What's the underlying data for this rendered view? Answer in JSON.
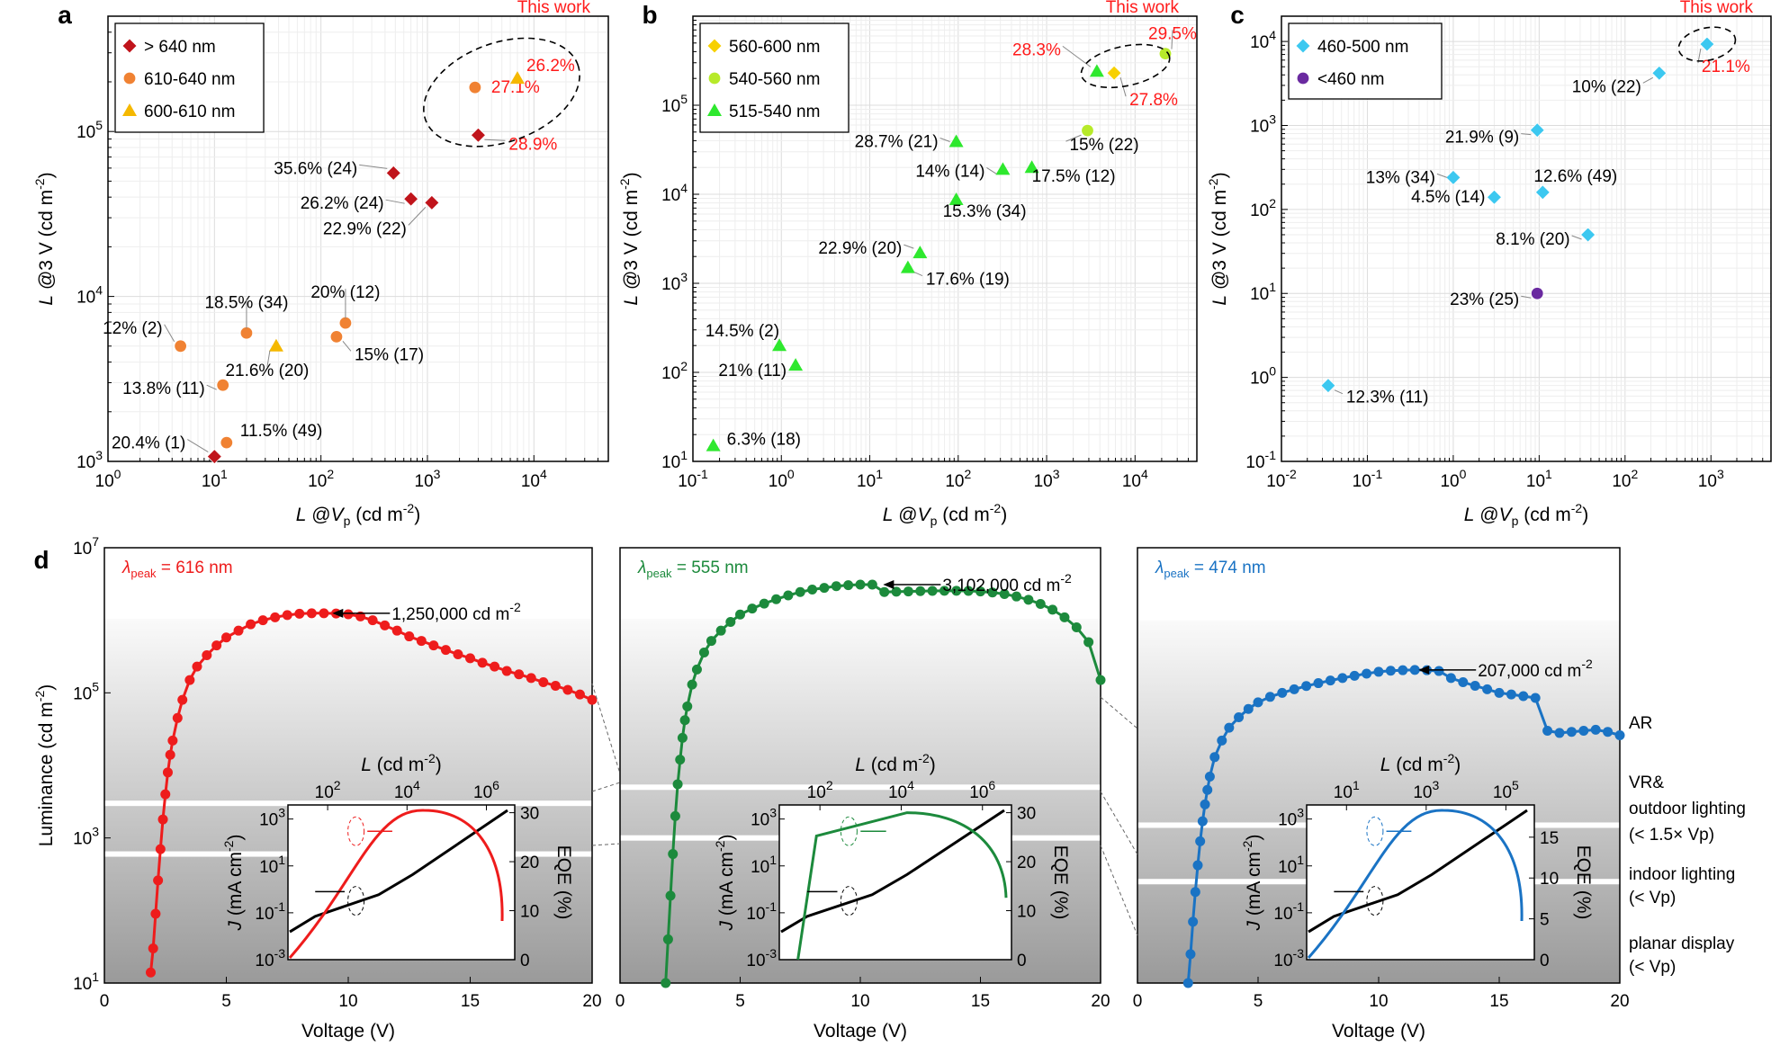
{
  "chart_data": [
    {
      "panel": "a",
      "type": "scatter",
      "xlabel": "L @Vp (cd m-2)",
      "ylabel": "L @3 V (cd m-2)",
      "xscale": "log",
      "yscale": "log",
      "xlim": [
        1,
        50000
      ],
      "ylim": [
        1000,
        500000
      ],
      "x_ticks": [
        "10^0",
        "10^1",
        "10^2",
        "10^3",
        "10^4"
      ],
      "y_ticks": [
        "10^3",
        "10^4",
        "10^5"
      ],
      "legend": [
        {
          "name": "> 640 nm",
          "color": "#c0141b",
          "marker": "diamond"
        },
        {
          "name": "610-640 nm",
          "color": "#f08233",
          "marker": "circle"
        },
        {
          "name": "600-610 nm",
          "color": "#f5b800",
          "marker": "triangle"
        }
      ],
      "this_work_label": "This work",
      "points": [
        {
          "series": 0,
          "x": 3000,
          "y": 95000,
          "label": "28.9%",
          "highlight": true
        },
        {
          "series": 1,
          "x": 2800,
          "y": 185000,
          "label": "27.1%",
          "highlight": true
        },
        {
          "series": 2,
          "x": 7000,
          "y": 210000,
          "label": "26.2%",
          "highlight": true
        },
        {
          "series": 0,
          "x": 480,
          "y": 56000,
          "label": "35.6% (24)"
        },
        {
          "series": 0,
          "x": 700,
          "y": 39000,
          "label": "26.2% (24)"
        },
        {
          "series": 0,
          "x": 1100,
          "y": 37000,
          "label": "22.9% (22)"
        },
        {
          "series": 1,
          "x": 4.8,
          "y": 5000,
          "label": "12% (2)"
        },
        {
          "series": 1,
          "x": 20,
          "y": 6000,
          "label": "18.5% (34)"
        },
        {
          "series": 1,
          "x": 170,
          "y": 6900,
          "label": "20% (12)"
        },
        {
          "series": 1,
          "x": 140,
          "y": 5700,
          "label": "15% (17)"
        },
        {
          "series": 2,
          "x": 38,
          "y": 5000,
          "label": "21.6% (20)"
        },
        {
          "series": 1,
          "x": 12,
          "y": 2900,
          "label": "13.8% (11)"
        },
        {
          "series": 1,
          "x": 13,
          "y": 1300,
          "label": "11.5% (49)"
        },
        {
          "series": 0,
          "x": 10,
          "y": 1070,
          "label": "20.4% (1)"
        }
      ]
    },
    {
      "panel": "b",
      "type": "scatter",
      "xlabel": "L @Vp (cd m-2)",
      "ylabel": "L @3 V (cd m-2)",
      "xscale": "log",
      "yscale": "log",
      "xlim": [
        0.1,
        50000
      ],
      "ylim": [
        10,
        1000000
      ],
      "x_ticks": [
        "10^-1",
        "10^0",
        "10^1",
        "10^2",
        "10^3",
        "10^4"
      ],
      "y_ticks": [
        "10^1",
        "10^2",
        "10^3",
        "10^4",
        "10^5"
      ],
      "legend": [
        {
          "name": "560-600 nm",
          "color": "#f7d000",
          "marker": "diamond"
        },
        {
          "name": "540-560 nm",
          "color": "#b7ea2a",
          "marker": "circle"
        },
        {
          "name": "515-540 nm",
          "color": "#2ee82e",
          "marker": "triangle"
        }
      ],
      "this_work_label": "This work",
      "points": [
        {
          "series": 2,
          "x": 3700,
          "y": 240000,
          "label": "28.3%",
          "highlight": true
        },
        {
          "series": 1,
          "x": 22000,
          "y": 380000,
          "label": "29.5%",
          "highlight": true
        },
        {
          "series": 0,
          "x": 5800,
          "y": 230000,
          "label": "27.8%",
          "highlight": true
        },
        {
          "series": 2,
          "x": 95,
          "y": 39000,
          "label": "28.7% (21)"
        },
        {
          "series": 2,
          "x": 320,
          "y": 19000,
          "label": "14% (14)"
        },
        {
          "series": 2,
          "x": 680,
          "y": 20000,
          "label": "17.5% (12)"
        },
        {
          "series": 1,
          "x": 2900,
          "y": 52000,
          "label": "15% (22)"
        },
        {
          "series": 2,
          "x": 95,
          "y": 8700,
          "label": "15.3% (34)"
        },
        {
          "series": 2,
          "x": 37,
          "y": 2200,
          "label": "22.9% (20)"
        },
        {
          "series": 2,
          "x": 27,
          "y": 1500,
          "label": "17.6% (19)"
        },
        {
          "series": 2,
          "x": 0.95,
          "y": 200,
          "label": "14.5% (2)"
        },
        {
          "series": 2,
          "x": 1.45,
          "y": 120,
          "label": "21% (11)"
        },
        {
          "series": 2,
          "x": 0.17,
          "y": 15,
          "label": "6.3% (18)"
        }
      ]
    },
    {
      "panel": "c",
      "type": "scatter",
      "xlabel": "L @Vp (cd m-2)",
      "ylabel": "L @3 V (cd m-2)",
      "xscale": "log",
      "yscale": "log",
      "xlim": [
        0.01,
        5000
      ],
      "ylim": [
        0.1,
        20000
      ],
      "x_ticks": [
        "10^-2",
        "10^-1",
        "10^0",
        "10^1",
        "10^2",
        "10^3"
      ],
      "y_ticks": [
        "10^-1",
        "10^0",
        "10^1",
        "10^2",
        "10^3",
        "10^4"
      ],
      "legend": [
        {
          "name": "460-500 nm",
          "color": "#3cc8f0",
          "marker": "diamond"
        },
        {
          "name": "<460 nm",
          "color": "#6a2aa0",
          "marker": "circle"
        }
      ],
      "this_work_label": "This work",
      "points": [
        {
          "series": 0,
          "x": 900,
          "y": 9300,
          "label": "21.1%",
          "highlight": true
        },
        {
          "series": 0,
          "x": 250,
          "y": 4200,
          "label": "10% (22)"
        },
        {
          "series": 0,
          "x": 9.5,
          "y": 880,
          "label": "21.9% (9)"
        },
        {
          "series": 0,
          "x": 1.0,
          "y": 240,
          "label": "13% (34)"
        },
        {
          "series": 0,
          "x": 11,
          "y": 160,
          "label": "12.6% (49)"
        },
        {
          "series": 0,
          "x": 3.0,
          "y": 140,
          "label": "4.5% (14)"
        },
        {
          "series": 0,
          "x": 37,
          "y": 50,
          "label": "8.1% (20)"
        },
        {
          "series": 1,
          "x": 9.5,
          "y": 10,
          "label": "23% (25)"
        },
        {
          "series": 0,
          "x": 0.035,
          "y": 0.8,
          "label": "12.3% (11)"
        }
      ]
    },
    {
      "panel": "d",
      "type": "line",
      "xlabel": "Voltage (V)",
      "ylabel": "Luminance (cd m-2)",
      "yscale": "log",
      "xlim": [
        0,
        20
      ],
      "ylim": [
        10,
        10000000
      ],
      "x_ticks": [
        "0",
        "5",
        "10",
        "15",
        "20"
      ],
      "y_ticks": [
        "10^1",
        "10^3",
        "10^5",
        "10^7"
      ],
      "zones": [
        {
          "label": [
            "AR"
          ]
        },
        {
          "label": [
            "VR&",
            "outdoor lighting",
            "(< 1.5× Vp)"
          ]
        },
        {
          "label": [
            "indoor lighting",
            "(< Vp)"
          ]
        },
        {
          "label": [
            "planar display",
            "(< Vp)"
          ]
        }
      ],
      "series": [
        {
          "name": "λpeak = 616 nm",
          "color": "#ee1c1c",
          "peak_label": "1,250,000 cd m-2",
          "peak": [
            9.2,
            1250000
          ],
          "x": [
            1.9,
            2.0,
            2.1,
            2.2,
            2.3,
            2.4,
            2.5,
            2.6,
            2.7,
            2.8,
            3.0,
            3.2,
            3.5,
            3.8,
            4.2,
            4.6,
            5.0,
            5.5,
            6.0,
            6.5,
            7.0,
            7.5,
            8.0,
            8.5,
            9.0,
            9.5,
            10.0,
            10.5,
            11.0,
            11.5,
            12.0,
            12.5,
            13.0,
            13.5,
            14.0,
            14.5,
            15.0,
            15.5,
            16.0,
            16.5,
            17.0,
            17.5,
            18.0,
            18.5,
            19.0,
            19.5,
            20.0
          ],
          "y": [
            14,
            30,
            90,
            260,
            700,
            1800,
            4000,
            8000,
            14000,
            22000,
            45000,
            80000,
            150000,
            230000,
            330000,
            450000,
            580000,
            720000,
            880000,
            1000000,
            1100000,
            1180000,
            1230000,
            1250000,
            1250000,
            1240000,
            1210000,
            1130000,
            1000000,
            850000,
            720000,
            600000,
            520000,
            450000,
            390000,
            340000,
            300000,
            260000,
            230000,
            200000,
            180000,
            160000,
            140000,
            125000,
            110000,
            95000,
            80000
          ]
        },
        {
          "name": "λpeak = 555 nm",
          "color": "#1c8a3c",
          "peak_label": "3,102,000 cd m-2",
          "peak": [
            10.8,
            3102000
          ],
          "x": [
            1.9,
            2.0,
            2.1,
            2.2,
            2.3,
            2.4,
            2.5,
            2.6,
            2.7,
            2.8,
            3.0,
            3.2,
            3.5,
            3.8,
            4.2,
            4.6,
            5.0,
            5.5,
            6.0,
            6.5,
            7.0,
            7.5,
            8.0,
            8.5,
            9.0,
            9.5,
            10.0,
            10.5,
            11.0,
            11.5,
            12.0,
            12.5,
            13.0,
            13.5,
            14.0,
            14.5,
            15.0,
            15.5,
            16.0,
            16.5,
            17.0,
            17.5,
            18.0,
            18.5,
            19.0,
            19.5,
            20.0
          ],
          "y": [
            10,
            40,
            160,
            600,
            2000,
            5500,
            12000,
            24000,
            42000,
            65000,
            130000,
            210000,
            360000,
            520000,
            720000,
            950000,
            1200000,
            1450000,
            1700000,
            1950000,
            2200000,
            2450000,
            2650000,
            2800000,
            2950000,
            3050000,
            3100000,
            3100000,
            2450000,
            2480000,
            2500000,
            2520000,
            2540000,
            2550000,
            2550000,
            2540000,
            2500000,
            2420000,
            2300000,
            2130000,
            1920000,
            1680000,
            1400000,
            1100000,
            800000,
            500000,
            150000
          ]
        },
        {
          "name": "λpeak = 474 nm",
          "color": "#1a73c4",
          "peak_label": "207,000 cd m-2",
          "peak": [
            11.5,
            207000
          ],
          "x": [
            2.1,
            2.2,
            2.3,
            2.4,
            2.5,
            2.6,
            2.7,
            2.8,
            2.9,
            3.0,
            3.2,
            3.5,
            3.8,
            4.2,
            4.6,
            5.0,
            5.5,
            6.0,
            6.5,
            7.0,
            7.5,
            8.0,
            8.5,
            9.0,
            9.5,
            10.0,
            10.5,
            11.0,
            11.5,
            12.0,
            12.5,
            13.0,
            13.5,
            14.0,
            14.5,
            15.0,
            15.5,
            16.0,
            16.5,
            17.0,
            17.5,
            18.0,
            18.5,
            19.0,
            19.5,
            20.0
          ],
          "y": [
            10,
            25,
            70,
            180,
            420,
            900,
            1700,
            2900,
            4600,
            7000,
            13000,
            22000,
            33000,
            46000,
            60000,
            74000,
            88000,
            100000,
            112000,
            124000,
            136000,
            148000,
            160000,
            172000,
            184000,
            195000,
            202000,
            205000,
            207000,
            205000,
            200000,
            160000,
            140000,
            125000,
            112000,
            100000,
            95000,
            90000,
            85000,
            30000,
            28000,
            29000,
            30000,
            31000,
            29000,
            26000
          ]
        }
      ]
    },
    {
      "panel": "d-inset",
      "type": "line",
      "x2label": "L (cd m-2)",
      "xlabel": "",
      "ylabel": "J (mA cm-2)",
      "y2label": "EQE (%)",
      "insets": [
        {
          "top_ticks": [
            "10^2",
            "10^4",
            "10^6"
          ],
          "j_ticks": [
            "10^-3",
            "10^-1",
            "10^1",
            "10^3"
          ],
          "eqe_ticks": [
            "0",
            "10",
            "20",
            "30"
          ],
          "color": "#ee1c1c",
          "eqe_max": 30
        },
        {
          "top_ticks": [
            "10^2",
            "10^4",
            "10^6"
          ],
          "j_ticks": [
            "10^-3",
            "10^-1",
            "10^1",
            "10^3"
          ],
          "eqe_ticks": [
            "0",
            "10",
            "20",
            "30"
          ],
          "color": "#1c8a3c",
          "eqe_max": 30
        },
        {
          "top_ticks": [
            "10^1",
            "10^3",
            "10^5"
          ],
          "j_ticks": [
            "10^-3",
            "10^-1",
            "10^1",
            "10^3"
          ],
          "eqe_ticks": [
            "0",
            "5",
            "10",
            "15"
          ],
          "color": "#1a73c4",
          "eqe_max": 18
        }
      ]
    }
  ]
}
